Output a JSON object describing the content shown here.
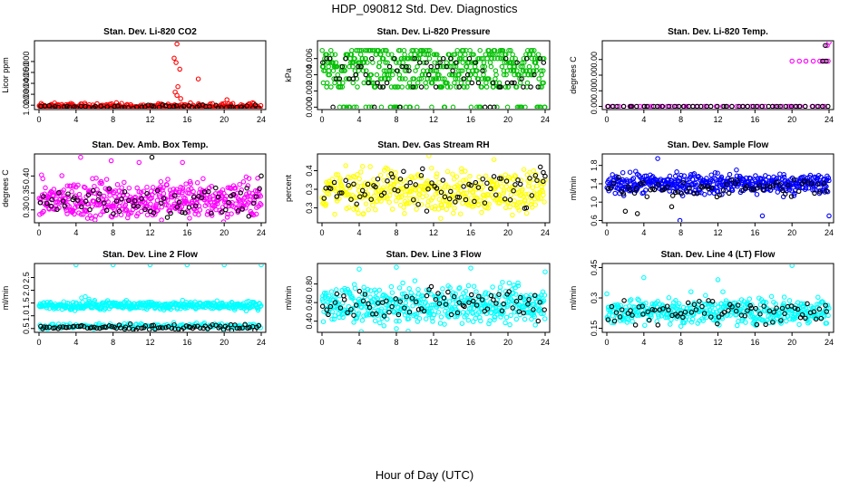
{
  "page": {
    "title": "HDP_090812  Std. Dev. Diagnostics",
    "x_caption": "Hour of Day (UTC)"
  },
  "chart_data": [
    {
      "type": "scatter",
      "title": "Stan. Dev. Li-820 CO2",
      "ylabel": "Licor ppm",
      "color": "#ff0000",
      "xlim": [
        0,
        24
      ],
      "xticks": [
        0,
        4,
        8,
        12,
        16,
        20,
        24
      ],
      "ylim": [
        0.6,
        6.9
      ],
      "yticks": [
        1,
        2,
        3,
        4,
        5
      ],
      "series": [
        {
          "name": "main",
          "color": "#ff0000",
          "base": 0.8,
          "spread": 0.18,
          "count": 420,
          "outliers": [
            [
              14.9,
              6.6
            ],
            [
              14.6,
              5.3
            ],
            [
              14.8,
              4.9
            ],
            [
              15.2,
              4.3
            ],
            [
              17.2,
              3.4
            ],
            [
              15.0,
              2.7
            ],
            [
              14.7,
              2.2
            ],
            [
              14.9,
              1.9
            ],
            [
              15.3,
              1.6
            ],
            [
              20.3,
              1.5
            ]
          ]
        },
        {
          "name": "black",
          "color": "#000000",
          "base": 0.85,
          "spread": 0.08,
          "count": 60,
          "outliers": []
        }
      ]
    },
    {
      "type": "scatter",
      "title": "Stan. Dev. Li-820 Pressure",
      "ylabel": "kPa",
      "color": "#00c000",
      "xlim": [
        0,
        24
      ],
      "xticks": [
        0,
        4,
        8,
        12,
        16,
        20,
        24
      ],
      "ylim": [
        -0.0003,
        0.0082
      ],
      "yticks": [
        0.0,
        0.002,
        0.004,
        0.006
      ],
      "series": [
        {
          "name": "main",
          "color": "#00c000",
          "levels": [
            0,
            0.0025,
            0.003,
            0.0035,
            0.004,
            0.0045,
            0.005,
            0.0055,
            0.006,
            0.0065,
            0.007
          ],
          "count": 520,
          "outliers": []
        },
        {
          "name": "black",
          "color": "#000000",
          "levels": [
            0,
            0.0025,
            0.003,
            0.0035,
            0.004,
            0.0045,
            0.005,
            0.0055,
            0.006
          ],
          "count": 70,
          "outliers": []
        }
      ]
    },
    {
      "type": "scatter",
      "title": "Stan. Dev. Li-820 Temp.",
      "ylabel": "degrees C",
      "color": "#ff00ff",
      "xlim": [
        0,
        24
      ],
      "xticks": [
        0,
        4,
        8,
        12,
        16,
        20,
        24
      ],
      "ylim": [
        -0.0002,
        0.0042
      ],
      "yticks": [
        0.0,
        0.001,
        0.002,
        0.003
      ],
      "series": [
        {
          "name": "main",
          "color": "#ff00ff",
          "base": 0,
          "spread": 0,
          "count": 45,
          "outliers": [
            [
              20.0,
              0.0029
            ],
            [
              20.8,
              0.0029
            ],
            [
              21.5,
              0.0029
            ],
            [
              22.3,
              0.0029
            ],
            [
              23.0,
              0.0029
            ],
            [
              23.5,
              0.0029
            ],
            [
              23.8,
              0.0039
            ],
            [
              23.9,
              0.0029
            ],
            [
              24.0,
              0.0041
            ]
          ]
        },
        {
          "name": "black",
          "color": "#000000",
          "base": 0,
          "spread": 0,
          "count": 45,
          "outliers": [
            [
              23.3,
              0.0029
            ],
            [
              23.6,
              0.0039
            ],
            [
              23.7,
              0.0029
            ]
          ]
        }
      ]
    },
    {
      "type": "scatter",
      "title": "Stan. Dev. Amb. Box Temp.",
      "ylabel": "degrees C",
      "color": "#ff00ff",
      "xlim": [
        0,
        24
      ],
      "xticks": [
        0,
        4,
        8,
        12,
        16,
        20,
        24
      ],
      "ylim": [
        0.262,
        0.465
      ],
      "yticks": [
        0.3,
        0.35,
        0.4
      ],
      "series": [
        {
          "name": "main",
          "color": "#ff00ff",
          "base": 0.33,
          "spread": 0.028,
          "count": 480,
          "outliers": [
            [
              4.5,
              0.455
            ],
            [
              7.8,
              0.445
            ],
            [
              10.8,
              0.44
            ],
            [
              15.5,
              0.44
            ]
          ]
        },
        {
          "name": "black",
          "color": "#000000",
          "base": 0.325,
          "spread": 0.025,
          "count": 70,
          "outliers": [
            [
              12.2,
              0.455
            ],
            [
              24.0,
              0.4
            ]
          ]
        }
      ]
    },
    {
      "type": "scatter",
      "title": "Stan. Dev. Gas Stream RH",
      "ylabel": "percent",
      "color": "#ffff00",
      "xlim": [
        0,
        24
      ],
      "xticks": [
        0,
        4,
        8,
        12,
        16,
        20,
        24
      ],
      "ylim": [
        0.26,
        0.445
      ],
      "yticks": [
        0.3,
        0.35,
        0.4
      ],
      "series": [
        {
          "name": "main",
          "color": "#ffff00",
          "base": 0.345,
          "spread": 0.028,
          "count": 420,
          "outliers": [
            [
              11.5,
              0.44
            ],
            [
              18.5,
              0.43
            ]
          ]
        },
        {
          "name": "black",
          "color": "#000000",
          "base": 0.345,
          "spread": 0.025,
          "count": 80,
          "outliers": [
            [
              23.8,
              0.395
            ],
            [
              24.0,
              0.385
            ]
          ]
        }
      ]
    },
    {
      "type": "scatter",
      "title": "Stan. Dev. Sample Flow",
      "ylabel": "ml/min",
      "color": "#0000ff",
      "xlim": [
        0,
        24
      ],
      "xticks": [
        0,
        4,
        8,
        12,
        16,
        20,
        24
      ],
      "ylim": [
        0.55,
        2.05
      ],
      "yticks": [
        0.6,
        1.0,
        1.4,
        1.8
      ],
      "series": [
        {
          "name": "main",
          "color": "#0000ff",
          "base": 1.4,
          "spread": 0.11,
          "count": 460,
          "outliers": [
            [
              5.5,
              1.95
            ],
            [
              7.9,
              0.6
            ],
            [
              16.8,
              0.7
            ],
            [
              24.0,
              0.7
            ],
            [
              14.0,
              1.7
            ]
          ]
        },
        {
          "name": "black",
          "color": "#000000",
          "base": 1.3,
          "spread": 0.1,
          "count": 70,
          "outliers": [
            [
              2.0,
              0.8
            ],
            [
              3.3,
              0.75
            ],
            [
              7.0,
              0.9
            ]
          ]
        }
      ]
    },
    {
      "type": "scatter",
      "title": "Stan. Dev. Line 2 Flow",
      "ylabel": "ml/min",
      "color": "#00ffff",
      "xlim": [
        0,
        24
      ],
      "xticks": [
        0,
        4,
        8,
        12,
        16,
        20,
        24
      ],
      "ylim": [
        0.35,
        3.05
      ],
      "yticks": [
        0.5,
        1.0,
        1.5,
        2.0,
        2.5
      ],
      "series": [
        {
          "name": "main",
          "color": "#00ffff",
          "base": 1.4,
          "spread": 0.08,
          "count": 380,
          "outliers": [
            [
              4.0,
              3.0
            ],
            [
              8.0,
              3.0
            ],
            [
              12.0,
              3.0
            ],
            [
              16.0,
              3.0
            ],
            [
              20.0,
              3.0
            ],
            [
              24.0,
              3.0
            ],
            [
              4.6,
              1.7
            ],
            [
              5.0,
              1.75
            ],
            [
              5.4,
              1.65
            ],
            [
              6.0,
              1.6
            ]
          ]
        },
        {
          "name": "cyan-low",
          "color": "#00ffff",
          "base": 0.6,
          "spread": 0.05,
          "count": 160,
          "outliers": []
        },
        {
          "name": "black",
          "color": "#000000",
          "base": 0.55,
          "spread": 0.05,
          "count": 90,
          "outliers": []
        }
      ]
    },
    {
      "type": "scatter",
      "title": "Stan. Dev. Line 3 Flow",
      "ylabel": "ml/min",
      "color": "#00ffff",
      "xlim": [
        0,
        24
      ],
      "xticks": [
        0,
        4,
        8,
        12,
        16,
        20,
        24
      ],
      "ylim": [
        0.28,
        1.02
      ],
      "yticks": [
        0.4,
        0.6,
        0.8
      ],
      "series": [
        {
          "name": "main",
          "color": "#00ffff",
          "base": 0.57,
          "spread": 0.1,
          "count": 480,
          "outliers": [
            [
              4.0,
              0.96
            ],
            [
              8.0,
              0.98
            ],
            [
              16.0,
              0.97
            ],
            [
              24.0,
              0.93
            ],
            [
              8.0,
              0.32
            ]
          ]
        },
        {
          "name": "black",
          "color": "#000000",
          "base": 0.6,
          "spread": 0.08,
          "count": 80,
          "outliers": []
        }
      ]
    },
    {
      "type": "scatter",
      "title": "Stan. Dev. Line 4 (LT) Flow",
      "ylabel": "ml/min",
      "color": "#00ffff",
      "xlim": [
        0,
        24
      ],
      "xticks": [
        0,
        4,
        8,
        12,
        16,
        20,
        24
      ],
      "ylim": [
        0.13,
        0.47
      ],
      "yticks": [
        0.15,
        0.3,
        0.45
      ],
      "series": [
        {
          "name": "main",
          "color": "#00ffff",
          "base": 0.235,
          "spread": 0.033,
          "count": 420,
          "outliers": [
            [
              4.0,
              0.4
            ],
            [
              12.0,
              0.39
            ],
            [
              20.0,
              0.46
            ],
            [
              0.0,
              0.32
            ],
            [
              8.0,
              0.16
            ]
          ]
        },
        {
          "name": "black",
          "color": "#000000",
          "base": 0.235,
          "spread": 0.03,
          "count": 80,
          "outliers": []
        }
      ]
    }
  ]
}
